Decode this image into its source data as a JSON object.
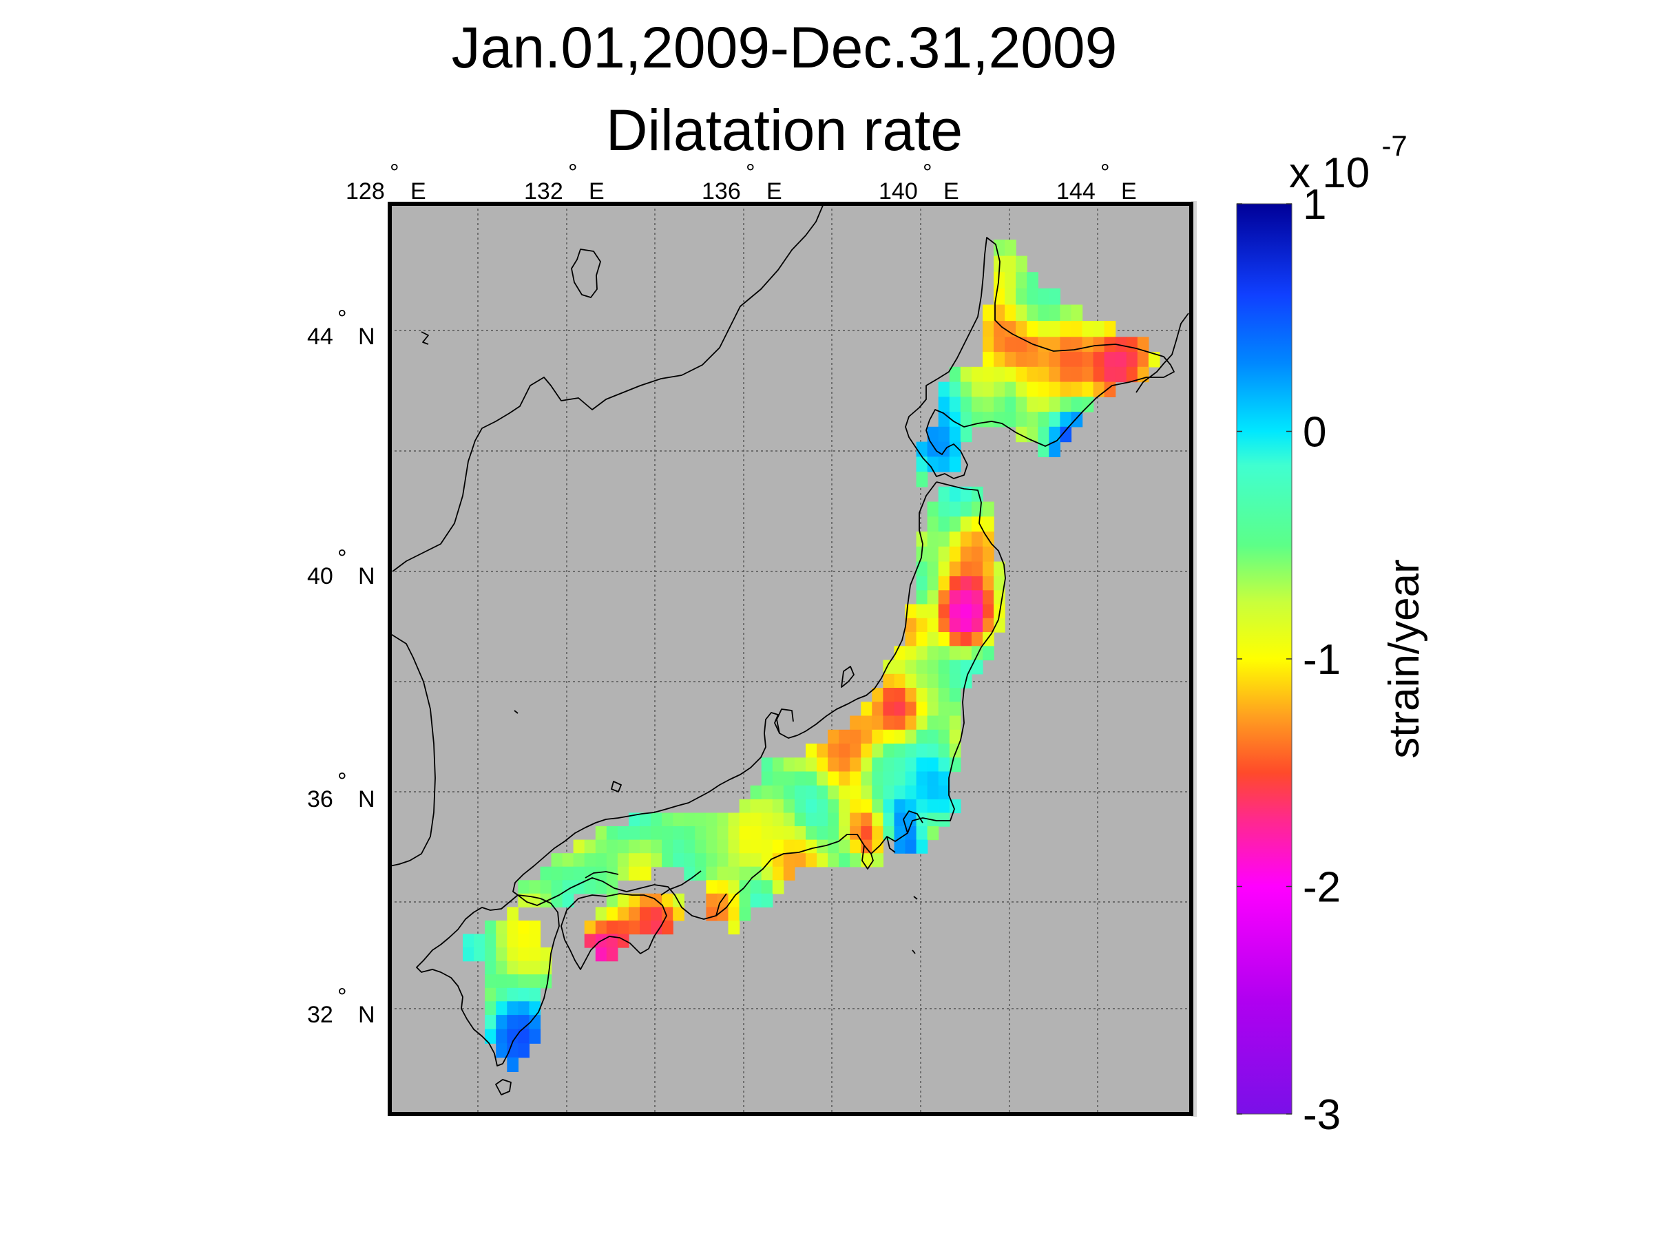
{
  "title_line1": "Jan.01,2009-Dec.31,2009",
  "title_line2": "Dilatation rate",
  "map": {
    "background_color": "#b3b3b3",
    "frame_color": "#000000",
    "coastline_color": "#000000",
    "grid": true,
    "lon_range": [
      127.1,
      145.6
    ],
    "lat_range": [
      30.2,
      46.0
    ],
    "lon_ticks": [
      {
        "value": 128,
        "label": "128",
        "deg": "°",
        "hemi": "E"
      },
      {
        "value": 132,
        "label": "132",
        "deg": "°",
        "hemi": "E"
      },
      {
        "value": 136,
        "label": "136",
        "deg": "°",
        "hemi": "E"
      },
      {
        "value": 140,
        "label": "140",
        "deg": "°",
        "hemi": "E"
      },
      {
        "value": 144,
        "label": "144",
        "deg": "°",
        "hemi": "E"
      }
    ],
    "lat_ticks": [
      {
        "value": 44,
        "label": "44",
        "deg": "°",
        "hemi": "N"
      },
      {
        "value": 40,
        "label": "40",
        "deg": "°",
        "hemi": "N"
      },
      {
        "value": 36,
        "label": "36",
        "deg": "°",
        "hemi": "N"
      },
      {
        "value": 32,
        "label": "32",
        "deg": "°",
        "hemi": "N"
      }
    ]
  },
  "colorbar": {
    "exponent_prefix": "x 10",
    "exponent": "-7",
    "label": "strain/year",
    "range": [
      -3,
      1
    ],
    "ticks": [
      {
        "value": 1,
        "label": "1"
      },
      {
        "value": 0,
        "label": "0"
      },
      {
        "value": -1,
        "label": "-1"
      },
      {
        "value": -2,
        "label": "-2"
      },
      {
        "value": -3,
        "label": "-3"
      }
    ],
    "stops": [
      {
        "value": -3.0,
        "color": "#7a10e8"
      },
      {
        "value": -2.5,
        "color": "#b000f0"
      },
      {
        "value": -2.0,
        "color": "#ff00ff"
      },
      {
        "value": -1.7,
        "color": "#ff2a8a"
      },
      {
        "value": -1.5,
        "color": "#ff4a2a"
      },
      {
        "value": -1.25,
        "color": "#ffa020"
      },
      {
        "value": -1.0,
        "color": "#ffff00"
      },
      {
        "value": -0.75,
        "color": "#c8ff3c"
      },
      {
        "value": -0.5,
        "color": "#5cff88"
      },
      {
        "value": -0.15,
        "color": "#40ffd0"
      },
      {
        "value": 0.0,
        "color": "#00e8ff"
      },
      {
        "value": 0.3,
        "color": "#0088ff"
      },
      {
        "value": 0.6,
        "color": "#1040ff"
      },
      {
        "value": 1.0,
        "color": "#000098"
      }
    ]
  },
  "icons": {
    "coastline": "coastline-outline",
    "strain_field": "strain-rate-grid"
  },
  "chart_data": {
    "type": "heatmap",
    "title": "Jan.01,2009-Dec.31,2009",
    "subtitle": "Dilatation rate",
    "xlabel": "",
    "ylabel": "",
    "colorbar_label": "strain/year",
    "colorbar_scale": "x 10^-7",
    "value_range": [
      -3,
      1
    ],
    "xlim": [
      127.1,
      145.6
    ],
    "ylim": [
      30.2,
      46.0
    ],
    "grid": true,
    "legend": "colorbar-right",
    "points": [
      {
        "lon": 141.9,
        "lat": 43.9,
        "value": -1.6
      },
      {
        "lon": 142.4,
        "lat": 43.8,
        "value": -1.8
      },
      {
        "lon": 144.7,
        "lat": 43.7,
        "value": -1.9
      },
      {
        "lon": 144.3,
        "lat": 43.5,
        "value": -2.0
      },
      {
        "lon": 143.4,
        "lat": 43.5,
        "value": -1.6
      },
      {
        "lon": 142.6,
        "lat": 43.3,
        "value": -1.2
      },
      {
        "lon": 141.4,
        "lat": 43.2,
        "value": -1.2
      },
      {
        "lon": 140.6,
        "lat": 42.8,
        "value": 0.4
      },
      {
        "lon": 143.5,
        "lat": 42.1,
        "value": 0.9
      },
      {
        "lon": 140.4,
        "lat": 42.2,
        "value": 0.6
      },
      {
        "lon": 141.3,
        "lat": 40.4,
        "value": -1.5
      },
      {
        "lon": 141.1,
        "lat": 39.5,
        "value": -1.9
      },
      {
        "lon": 141.0,
        "lat": 39.2,
        "value": -2.4
      },
      {
        "lon": 139.7,
        "lat": 39.0,
        "value": -1.6
      },
      {
        "lon": 139.4,
        "lat": 37.6,
        "value": -1.9
      },
      {
        "lon": 138.6,
        "lat": 37.2,
        "value": -1.6
      },
      {
        "lon": 138.2,
        "lat": 36.8,
        "value": -1.6
      },
      {
        "lon": 140.4,
        "lat": 36.1,
        "value": 0.3
      },
      {
        "lon": 139.4,
        "lat": 35.5,
        "value": 0.9
      },
      {
        "lon": 139.0,
        "lat": 35.3,
        "value": -2.3
      },
      {
        "lon": 139.6,
        "lat": 35.0,
        "value": 0.8
      },
      {
        "lon": 137.1,
        "lat": 34.8,
        "value": -1.5
      },
      {
        "lon": 134.0,
        "lat": 33.6,
        "value": -2.0
      },
      {
        "lon": 133.2,
        "lat": 33.3,
        "value": -1.9
      },
      {
        "lon": 132.7,
        "lat": 33.1,
        "value": -2.2
      },
      {
        "lon": 135.4,
        "lat": 33.9,
        "value": -1.6
      },
      {
        "lon": 131.2,
        "lat": 33.1,
        "value": -1.0
      },
      {
        "lon": 130.7,
        "lat": 31.6,
        "value": 0.6
      },
      {
        "lon": 131.0,
        "lat": 31.4,
        "value": 0.9
      },
      {
        "lon": 130.8,
        "lat": 31.0,
        "value": 0.4
      },
      {
        "lon": 140.0,
        "lat": 38.3,
        "value": -0.5
      },
      {
        "lon": 139.2,
        "lat": 36.4,
        "value": -0.2
      },
      {
        "lon": 136.8,
        "lat": 35.4,
        "value": -0.9
      },
      {
        "lon": 135.2,
        "lat": 35.1,
        "value": -0.7
      },
      {
        "lon": 132.8,
        "lat": 34.5,
        "value": -0.5
      },
      {
        "lon": 141.3,
        "lat": 42.9,
        "value": -0.4
      },
      {
        "lon": 142.5,
        "lat": 44.4,
        "value": -0.3
      }
    ]
  }
}
